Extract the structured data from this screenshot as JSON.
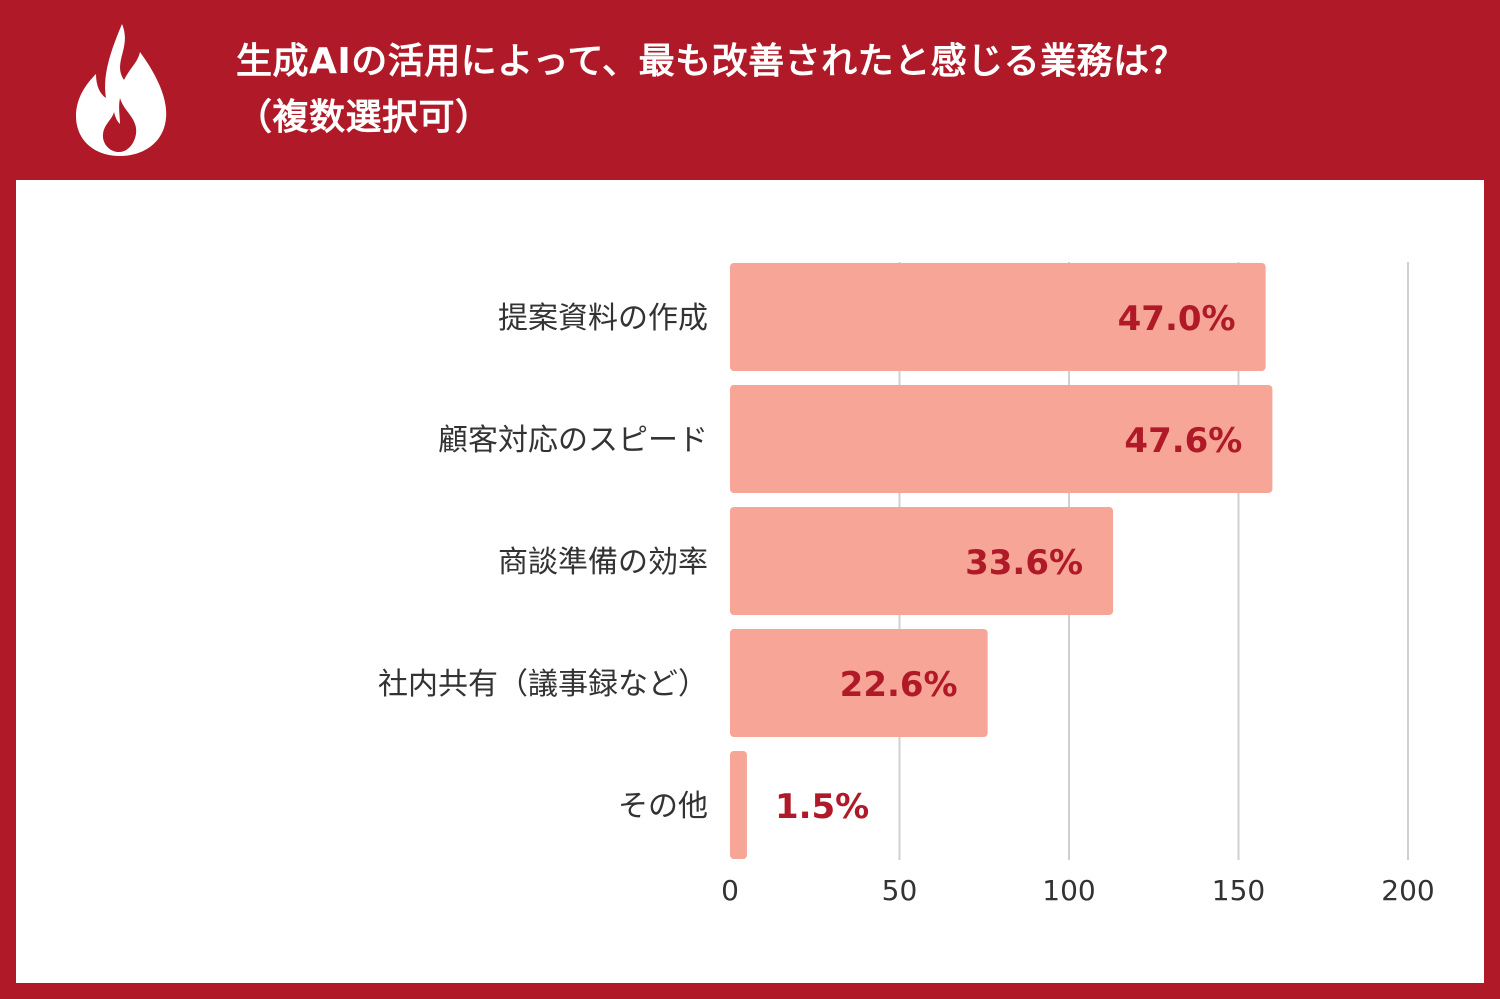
{
  "header": {
    "title_line1": "生成AIの活用によって、最も改善されたと感じる業務は？",
    "title_line2": "（複数選択可）",
    "icon": "flame-icon"
  },
  "colors": {
    "accent": "#b01a28",
    "bar": "#f6a596",
    "value_text": "#b01a28",
    "grid": "#d0d0d0",
    "panel": "#ffffff"
  },
  "chart_data": {
    "type": "bar",
    "orientation": "horizontal",
    "title": "生成AIの活用によって、最も改善されたと感じる業務は？（複数選択可）",
    "categories": [
      "提案資料の作成",
      "顧客対応のスピード",
      "商談準備の効率",
      "社内共有（議事録など）",
      "その他"
    ],
    "values": [
      158,
      160,
      113,
      76,
      5
    ],
    "data_labels": [
      "47.0%",
      "47.6%",
      "33.6%",
      "22.6%",
      "1.5%"
    ],
    "xlim": [
      0,
      200
    ],
    "xticks": [
      0,
      50,
      100,
      150,
      200
    ],
    "grid": true,
    "legend": "none"
  }
}
